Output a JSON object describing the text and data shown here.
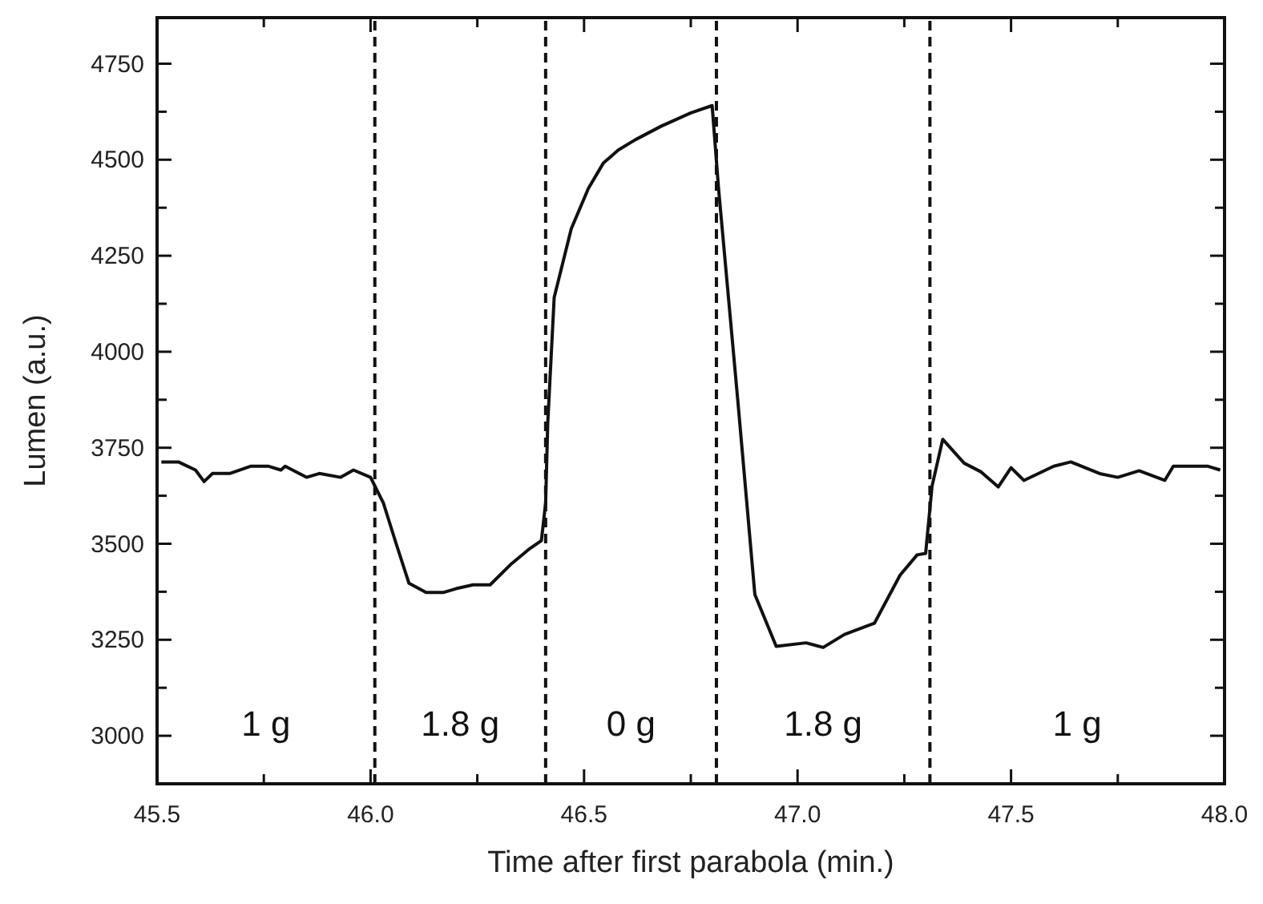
{
  "chart_data": {
    "type": "line",
    "xlabel": "Time after first parabola (min.)",
    "ylabel": "Lumen (a.u.)",
    "xlim": [
      45.5,
      48.0
    ],
    "ylim": [
      2875,
      4870
    ],
    "xticks": [
      {
        "value": 45.5,
        "label": "45.5"
      },
      {
        "value": 45.75,
        "label": null
      },
      {
        "value": 46.0,
        "label": "46.0"
      },
      {
        "value": 46.25,
        "label": null
      },
      {
        "value": 46.5,
        "label": "46.5"
      },
      {
        "value": 46.75,
        "label": null
      },
      {
        "value": 47.0,
        "label": "47.0"
      },
      {
        "value": 47.25,
        "label": null
      },
      {
        "value": 47.5,
        "label": "47.5"
      },
      {
        "value": 47.75,
        "label": null
      },
      {
        "value": 48.0,
        "label": "48.0"
      }
    ],
    "yticks": [
      3000,
      {
        "value": 3125,
        "label": null
      },
      3250,
      {
        "value": 3375,
        "label": null
      },
      3500,
      {
        "value": 3625,
        "label": null
      },
      3750,
      {
        "value": 3875,
        "label": null
      },
      4000,
      {
        "value": 4125,
        "label": null
      },
      4250,
      {
        "value": 4375,
        "label": null
      },
      4500,
      {
        "value": 4625,
        "label": null
      },
      4750
    ],
    "grid": false,
    "marker": "none",
    "line_style": "solid",
    "series": [
      {
        "color": "#111111",
        "x": [
          45.51,
          45.55,
          45.59,
          45.61,
          45.63,
          45.67,
          45.72,
          45.76,
          45.79,
          45.8,
          45.85,
          45.88,
          45.93,
          45.96,
          46.0,
          46.03,
          46.06,
          46.09,
          46.13,
          46.17,
          46.2,
          46.24,
          46.28,
          46.33,
          46.37,
          46.4,
          46.41,
          46.415,
          46.43,
          46.47,
          46.51,
          46.545,
          46.58,
          46.62,
          46.68,
          46.75,
          46.8,
          46.815,
          46.86,
          46.9,
          46.95,
          47.02,
          47.06,
          47.11,
          47.18,
          47.24,
          47.28,
          47.3,
          47.315,
          47.34,
          47.39,
          47.43,
          47.47,
          47.5,
          47.53,
          47.6,
          47.64,
          47.71,
          47.75,
          47.8,
          47.86,
          47.88,
          47.96,
          47.99
        ],
        "values": [
          3713,
          3713,
          3692,
          3662,
          3683,
          3683,
          3702,
          3702,
          3692,
          3702,
          3673,
          3683,
          3673,
          3692,
          3673,
          3606,
          3500,
          3397,
          3373,
          3373,
          3383,
          3393,
          3393,
          3448,
          3485,
          3508,
          3606,
          3815,
          4141,
          4320,
          4425,
          4491,
          4525,
          4552,
          4587,
          4622,
          4641,
          4425,
          3874,
          3368,
          3233,
          3242,
          3230,
          3264,
          3293,
          3418,
          3471,
          3475,
          3650,
          3772,
          3710,
          3687,
          3648,
          3698,
          3665,
          3702,
          3713,
          3682,
          3673,
          3690,
          3665,
          3702,
          3702,
          3692
        ]
      }
    ],
    "ref_lines": [
      {
        "axis": "x",
        "value": 46.01,
        "color": "#111111",
        "line_style": "dashed"
      },
      {
        "axis": "x",
        "value": 46.41,
        "color": "#111111",
        "line_style": "dashed"
      },
      {
        "axis": "x",
        "value": 46.81,
        "color": "#111111",
        "line_style": "dashed"
      },
      {
        "axis": "x",
        "value": 47.31,
        "color": "#111111",
        "line_style": "dashed"
      }
    ],
    "annotations": [
      "1 g",
      "1.8 g",
      "0 g",
      "1.8 g",
      "1 g"
    ]
  }
}
